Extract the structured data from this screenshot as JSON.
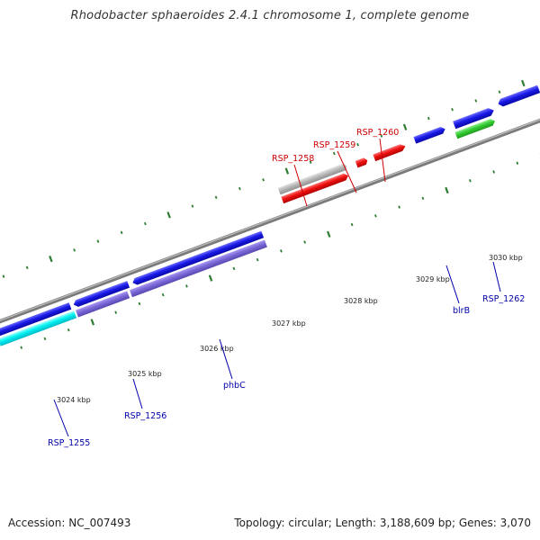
{
  "title": "Rhodobacter sphaeroides 2.4.1 chromosome 1, complete genome",
  "footer": {
    "accession": "Accession: NC_007493",
    "stats": "Topology: circular; Length: 3,188,609 bp; Genes: 3,070"
  },
  "colors": {
    "backbone": "#8a8a8a",
    "tick": "#2e7d32",
    "cds_blue": "#1a1ae6",
    "cds_purple": "#7b68d8",
    "cds_cyan": "#00f0f0",
    "cds_red": "#ee1111",
    "cds_gray": "#b8b8b8",
    "cds_green": "#33cc33",
    "label_blue": "#0000aa",
    "label_red": "#cc0000"
  },
  "kbp_labels": [
    "3024 kbp",
    "3025 kbp",
    "3026 kbp",
    "3027 kbp",
    "3028 kbp",
    "3029 kbp",
    "3030 kbp"
  ],
  "gene_labels": {
    "rsp_1255": "RSP_1255",
    "rsp_1256": "RSP_1256",
    "phbc": "phbC",
    "blrb": "blrB",
    "rsp_1262": "RSP_1262",
    "rsp_1258": "RSP_1258",
    "rsp_1259": "RSP_1259",
    "rsp_1260": "RSP_1260"
  }
}
